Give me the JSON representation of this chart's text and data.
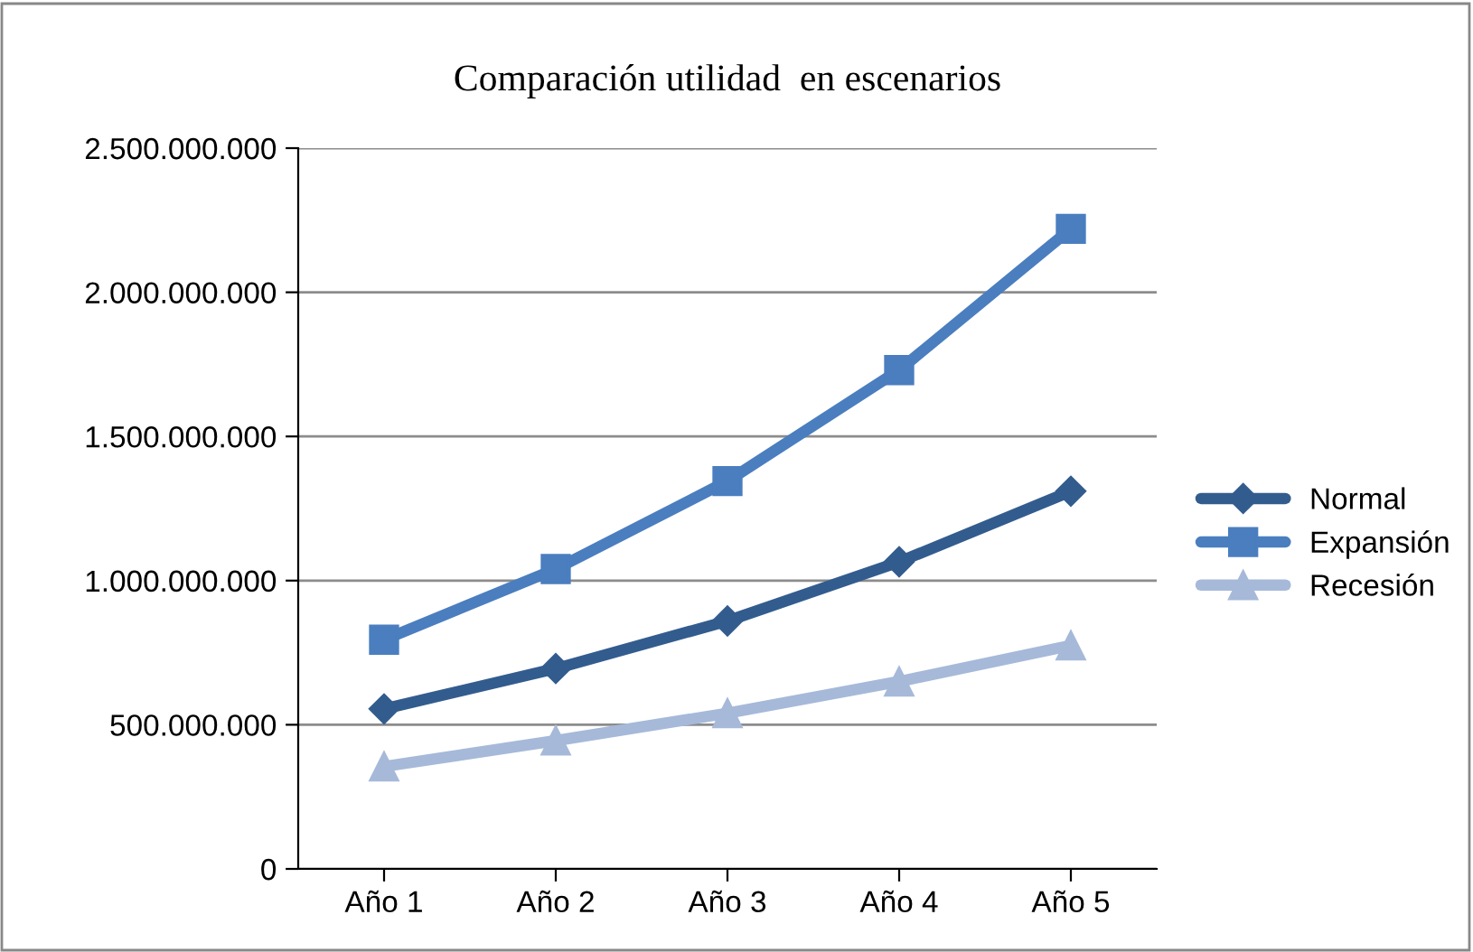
{
  "chart_data": {
    "type": "line",
    "title": "Comparación utilidad  en escenarios",
    "categories": [
      "Año 1",
      "Año 2",
      "Año 3",
      "Año 4",
      "Año 5"
    ],
    "series": [
      {
        "name": "Normal",
        "color": "#335c8e",
        "marker": "diamond",
        "values": [
          555000000,
          695000000,
          860000000,
          1065000000,
          1310000000
        ]
      },
      {
        "name": "Expansión",
        "color": "#4a7ebf",
        "marker": "square",
        "values": [
          795000000,
          1040000000,
          1345000000,
          1730000000,
          2220000000
        ]
      },
      {
        "name": "Recesión",
        "color": "#a6b9d9",
        "marker": "triangle",
        "values": [
          355000000,
          445000000,
          540000000,
          650000000,
          775000000
        ]
      }
    ],
    "ylim": [
      0,
      2500000000
    ],
    "yticks": [
      {
        "value": 0,
        "label": "0"
      },
      {
        "value": 500000000,
        "label": "500.000.000"
      },
      {
        "value": 1000000000,
        "label": "1.000.000.000"
      },
      {
        "value": 1500000000,
        "label": "1.500.000.000"
      },
      {
        "value": 2000000000,
        "label": "2.000.000.000"
      },
      {
        "value": 2500000000,
        "label": "2.500.000.000"
      }
    ],
    "grid": "y",
    "legend": "right",
    "line_style": "solid"
  }
}
